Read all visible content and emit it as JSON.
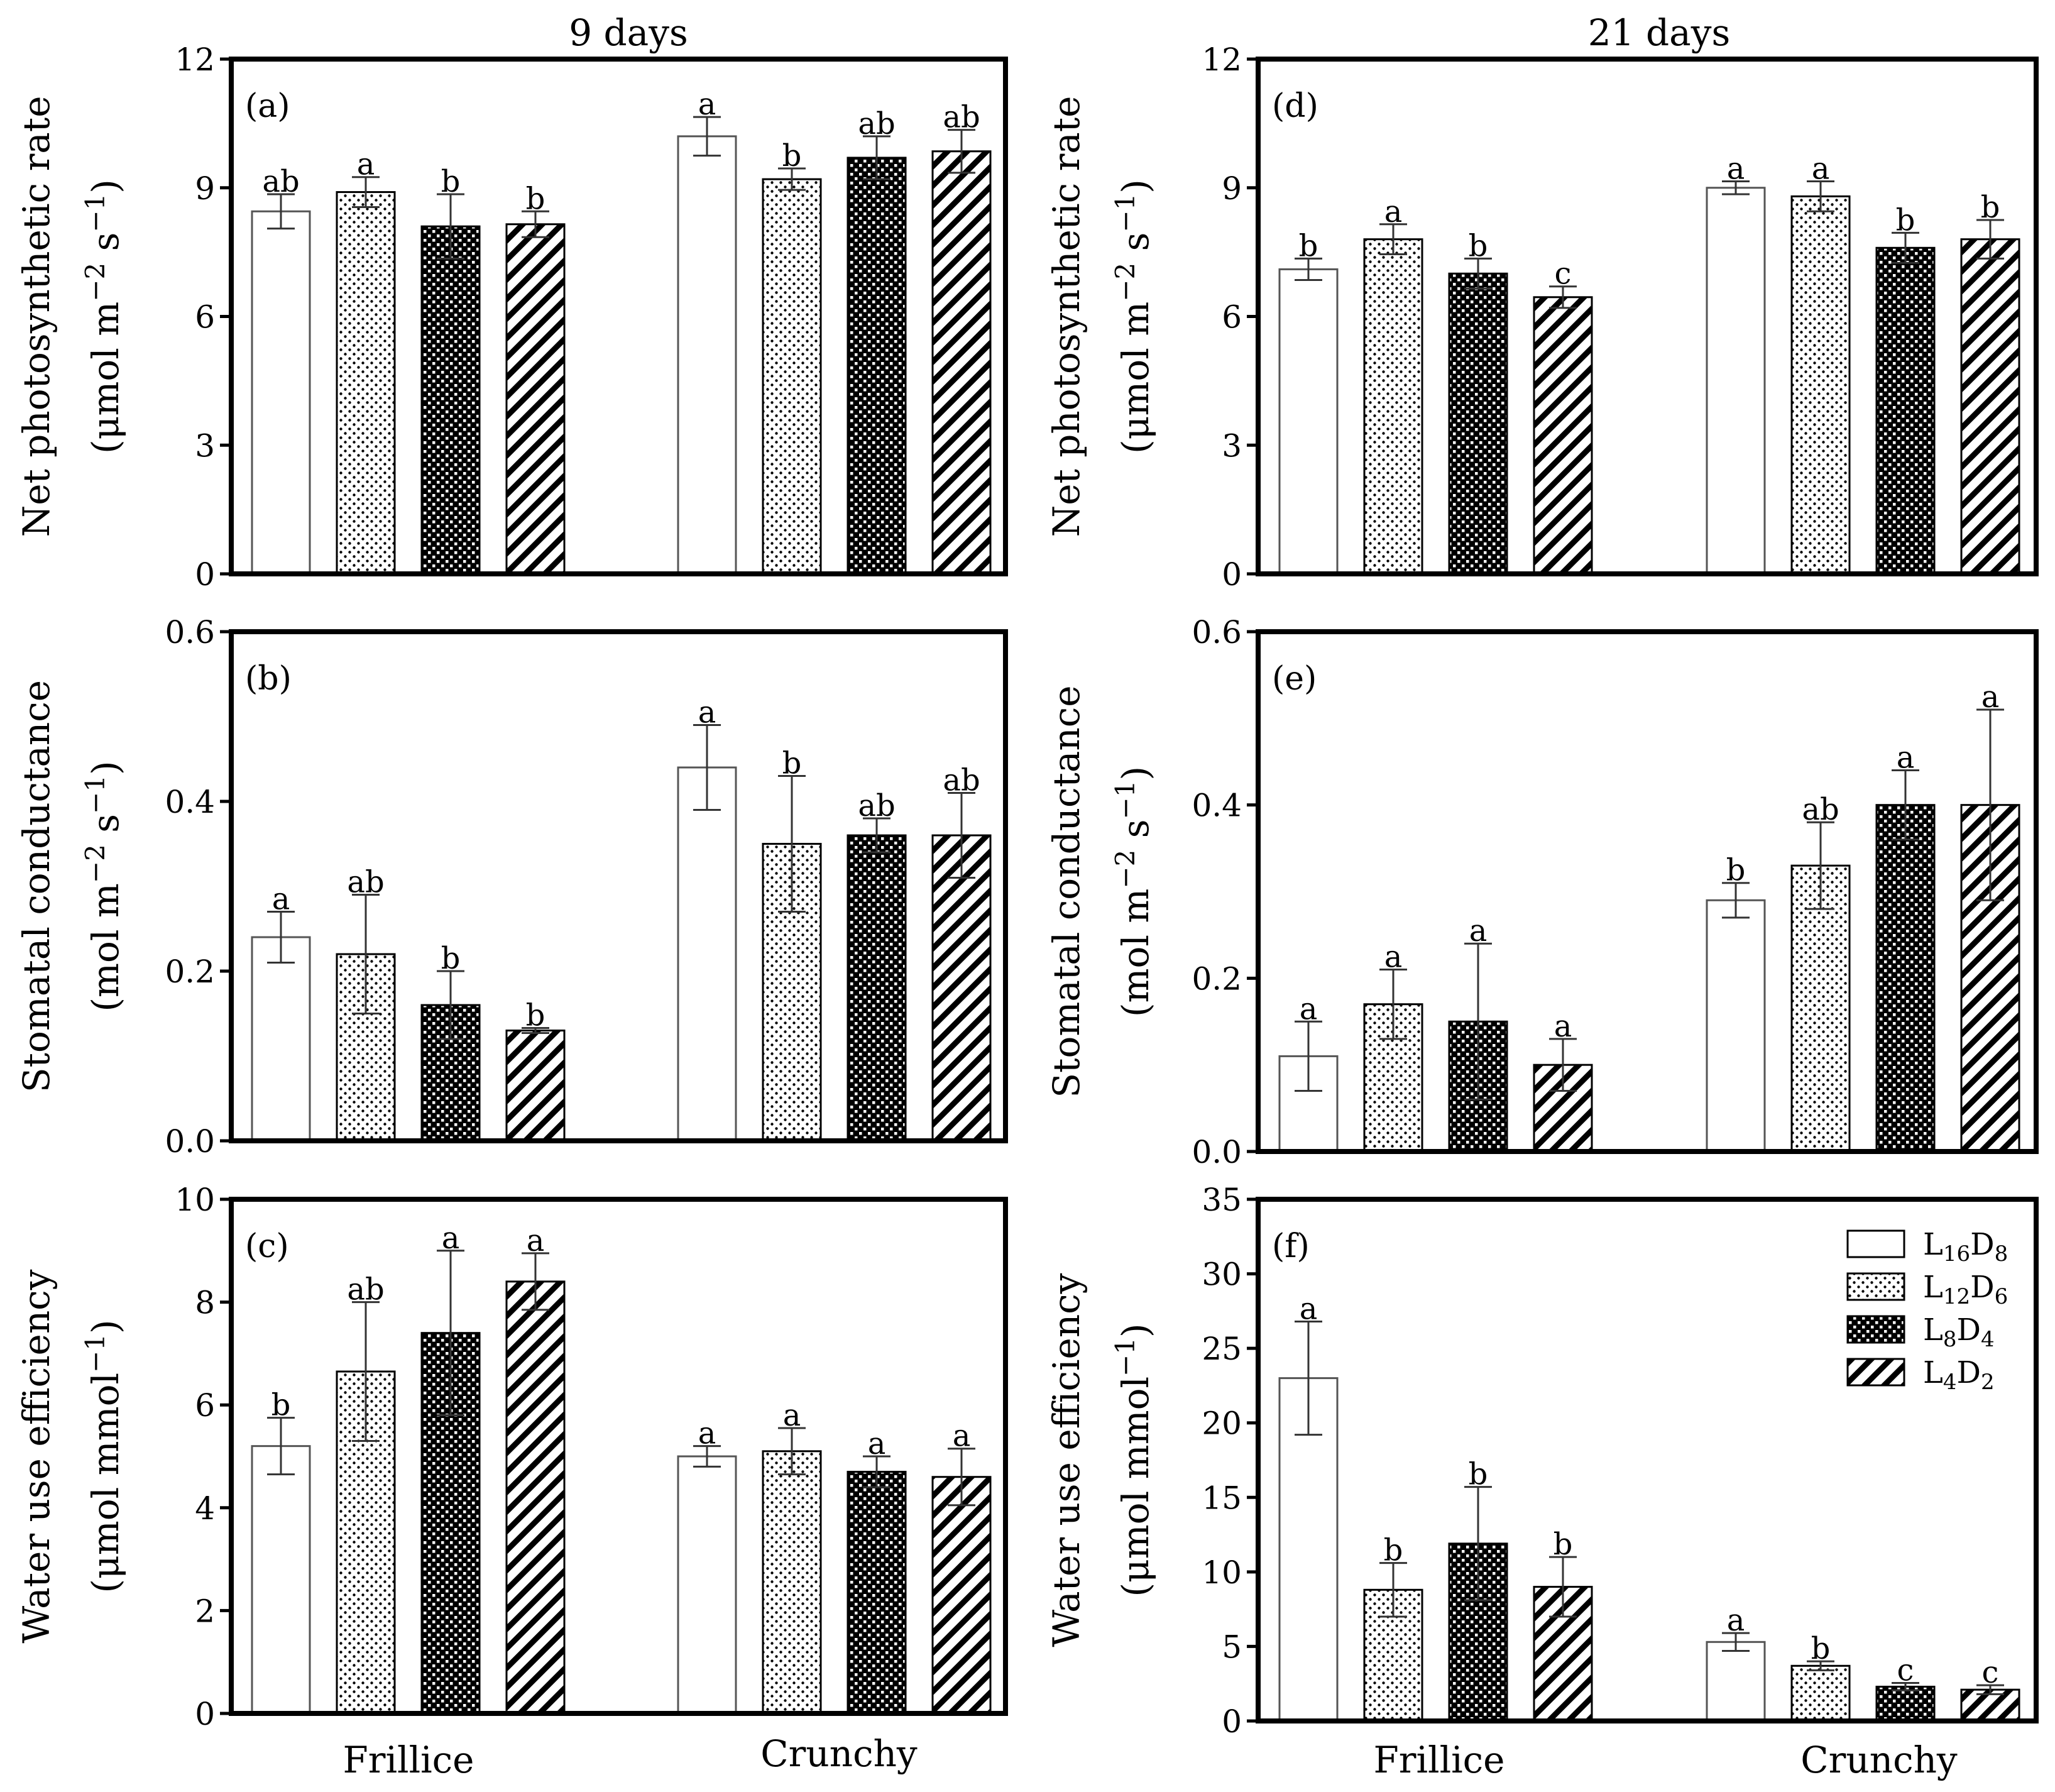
{
  "figure": {
    "column_titles": [
      "9 days",
      "21 days"
    ],
    "group_labels": [
      "Frillice",
      "Crunchy"
    ],
    "legend": {
      "entries": [
        {
          "main": "L",
          "sub1": "16",
          "mid": "D",
          "sub2": "8",
          "pattern": "open"
        },
        {
          "main": "L",
          "sub1": "12",
          "mid": "D",
          "sub2": "6",
          "pattern": "dots"
        },
        {
          "main": "L",
          "sub1": "8",
          "mid": "D",
          "sub2": "4",
          "pattern": "checker"
        },
        {
          "main": "L",
          "sub1": "4",
          "mid": "D",
          "sub2": "2",
          "pattern": "hatch"
        }
      ]
    }
  },
  "chart_data": [
    {
      "panel": "(a)",
      "type": "bar",
      "ylabel_line1": "Net photosynthetic  rate",
      "ylabel_line2": {
        "pre": "(μmol m",
        "sup1": "−2",
        "mid": " s",
        "sup2": "−1",
        "post": ")"
      },
      "ylim": [
        0,
        12
      ],
      "yticks": [
        "0",
        "3",
        "6",
        "9",
        "12"
      ],
      "tick_values": [
        0,
        3,
        6,
        9,
        12
      ],
      "categories": [
        "Frillice",
        "Crunchy"
      ],
      "series": [
        {
          "name": "L16D8",
          "values": [
            8.45,
            10.2
          ],
          "errors": [
            0.4,
            0.45
          ],
          "letters": [
            "ab",
            "a"
          ]
        },
        {
          "name": "L12D6",
          "values": [
            8.9,
            9.2
          ],
          "errors": [
            0.35,
            0.25
          ],
          "letters": [
            "a",
            "b"
          ]
        },
        {
          "name": "L8D4",
          "values": [
            8.1,
            9.7
          ],
          "errors": [
            0.75,
            0.5
          ],
          "letters": [
            "b",
            "ab"
          ]
        },
        {
          "name": "L4D2",
          "values": [
            8.15,
            9.85
          ],
          "errors": [
            0.3,
            0.5
          ],
          "letters": [
            "b",
            "ab"
          ]
        }
      ]
    },
    {
      "panel": "(b)",
      "type": "bar",
      "ylabel_line1": "Stomatal conductance",
      "ylabel_line2": {
        "pre": "(mol m",
        "sup1": "−2",
        "mid": " s",
        "sup2": "−1",
        "post": ")"
      },
      "ylim": [
        0,
        0.6
      ],
      "yticks": [
        "0.0",
        "0.2",
        "0.4",
        "0.6"
      ],
      "tick_values": [
        0,
        0.2,
        0.4,
        0.6
      ],
      "categories": [
        "Frillice",
        "Crunchy"
      ],
      "series": [
        {
          "name": "L16D8",
          "values": [
            0.24,
            0.44
          ],
          "errors": [
            0.03,
            0.05
          ],
          "letters": [
            "a",
            "a"
          ]
        },
        {
          "name": "L12D6",
          "values": [
            0.22,
            0.35
          ],
          "errors": [
            0.07,
            0.08
          ],
          "letters": [
            "ab",
            "b"
          ]
        },
        {
          "name": "L8D4",
          "values": [
            0.16,
            0.36
          ],
          "errors": [
            0.04,
            0.02
          ],
          "letters": [
            "b",
            "ab"
          ]
        },
        {
          "name": "L4D2",
          "values": [
            0.13,
            0.36
          ],
          "errors": [
            0.003,
            0.05
          ],
          "letters": [
            "b",
            "ab"
          ]
        }
      ]
    },
    {
      "panel": "(c)",
      "type": "bar",
      "ylabel_line1": "Water use efficiency",
      "ylabel_line2": {
        "pre": "(μmol mmol",
        "sup1": "−1",
        "mid": "",
        "sup2": "",
        "post": ")"
      },
      "ylim": [
        0,
        10
      ],
      "yticks": [
        "0",
        "2",
        "4",
        "6",
        "8",
        "10"
      ],
      "tick_values": [
        0,
        2,
        4,
        6,
        8,
        10
      ],
      "categories": [
        "Frillice",
        "Crunchy"
      ],
      "series": [
        {
          "name": "L16D8",
          "values": [
            5.2,
            5.0
          ],
          "errors": [
            0.55,
            0.2
          ],
          "letters": [
            "b",
            "a"
          ]
        },
        {
          "name": "L12D6",
          "values": [
            6.65,
            5.1
          ],
          "errors": [
            1.35,
            0.45
          ],
          "letters": [
            "ab",
            "a"
          ]
        },
        {
          "name": "L8D4",
          "values": [
            7.4,
            4.7
          ],
          "errors": [
            1.6,
            0.3
          ],
          "letters": [
            "a",
            "a"
          ]
        },
        {
          "name": "L4D2",
          "values": [
            8.4,
            4.6
          ],
          "errors": [
            0.55,
            0.55
          ],
          "letters": [
            "a",
            "a"
          ]
        }
      ]
    },
    {
      "panel": "(d)",
      "type": "bar",
      "ylabel_line1": "Net photosynthetic  rate",
      "ylabel_line2": {
        "pre": "(μmol m",
        "sup1": "−2",
        "mid": " s",
        "sup2": "−1",
        "post": ")"
      },
      "ylim": [
        0,
        12
      ],
      "yticks": [
        "0",
        "3",
        "6",
        "9",
        "12"
      ],
      "tick_values": [
        0,
        3,
        6,
        9,
        12
      ],
      "categories": [
        "Frillice",
        "Crunchy"
      ],
      "series": [
        {
          "name": "L16D8",
          "values": [
            7.1,
            9.0
          ],
          "errors": [
            0.25,
            0.15
          ],
          "letters": [
            "b",
            "a"
          ]
        },
        {
          "name": "L12D6",
          "values": [
            7.8,
            8.8
          ],
          "errors": [
            0.35,
            0.35
          ],
          "letters": [
            "a",
            "a"
          ]
        },
        {
          "name": "L8D4",
          "values": [
            7.0,
            7.6
          ],
          "errors": [
            0.35,
            0.35
          ],
          "letters": [
            "b",
            "b"
          ]
        },
        {
          "name": "L4D2",
          "values": [
            6.45,
            7.8
          ],
          "errors": [
            0.25,
            0.45
          ],
          "letters": [
            "c",
            "b"
          ]
        }
      ]
    },
    {
      "panel": "(e)",
      "type": "bar",
      "ylabel_line1": "Stomatal conductance",
      "ylabel_line2": {
        "pre": "(mol m",
        "sup1": "−2",
        "mid": " s",
        "sup2": "−1",
        "post": ")"
      },
      "ylim": [
        0,
        0.6
      ],
      "yticks": [
        "0.0",
        "0.2",
        "0.4",
        "0.6"
      ],
      "tick_values": [
        0,
        0.2,
        0.4,
        0.6
      ],
      "categories": [
        "Frillice",
        "Crunchy"
      ],
      "series": [
        {
          "name": "L16D8",
          "values": [
            0.11,
            0.29
          ],
          "errors": [
            0.04,
            0.02
          ],
          "letters": [
            "a",
            "b"
          ]
        },
        {
          "name": "L12D6",
          "values": [
            0.17,
            0.33
          ],
          "errors": [
            0.04,
            0.05
          ],
          "letters": [
            "a",
            "ab"
          ]
        },
        {
          "name": "L8D4",
          "values": [
            0.15,
            0.4
          ],
          "errors": [
            0.09,
            0.04
          ],
          "letters": [
            "a",
            "a"
          ]
        },
        {
          "name": "L4D2",
          "values": [
            0.1,
            0.4
          ],
          "errors": [
            0.03,
            0.11
          ],
          "letters": [
            "a",
            "a"
          ]
        }
      ]
    },
    {
      "panel": "(f)",
      "type": "bar",
      "ylabel_line1": "Water use efficiency",
      "ylabel_line2": {
        "pre": "(μmol mmol",
        "sup1": "−1",
        "mid": "",
        "sup2": "",
        "post": ")"
      },
      "ylim": [
        0,
        35
      ],
      "yticks": [
        "0",
        "5",
        "10",
        "15",
        "20",
        "25",
        "30",
        "35"
      ],
      "tick_values": [
        0,
        5,
        10,
        15,
        20,
        25,
        30,
        35
      ],
      "categories": [
        "Frillice",
        "Crunchy"
      ],
      "series": [
        {
          "name": "L16D8",
          "values": [
            23.0,
            5.3
          ],
          "errors": [
            3.8,
            0.6
          ],
          "letters": [
            "a",
            "a"
          ]
        },
        {
          "name": "L12D6",
          "values": [
            8.8,
            3.7
          ],
          "errors": [
            1.8,
            0.3
          ],
          "letters": [
            "b",
            "b"
          ]
        },
        {
          "name": "L8D4",
          "values": [
            11.9,
            2.3
          ],
          "errors": [
            3.8,
            0.25
          ],
          "letters": [
            "b",
            "c"
          ]
        },
        {
          "name": "L4D2",
          "values": [
            9.0,
            2.1
          ],
          "errors": [
            2.0,
            0.3
          ],
          "letters": [
            "b",
            "c"
          ]
        }
      ]
    }
  ]
}
